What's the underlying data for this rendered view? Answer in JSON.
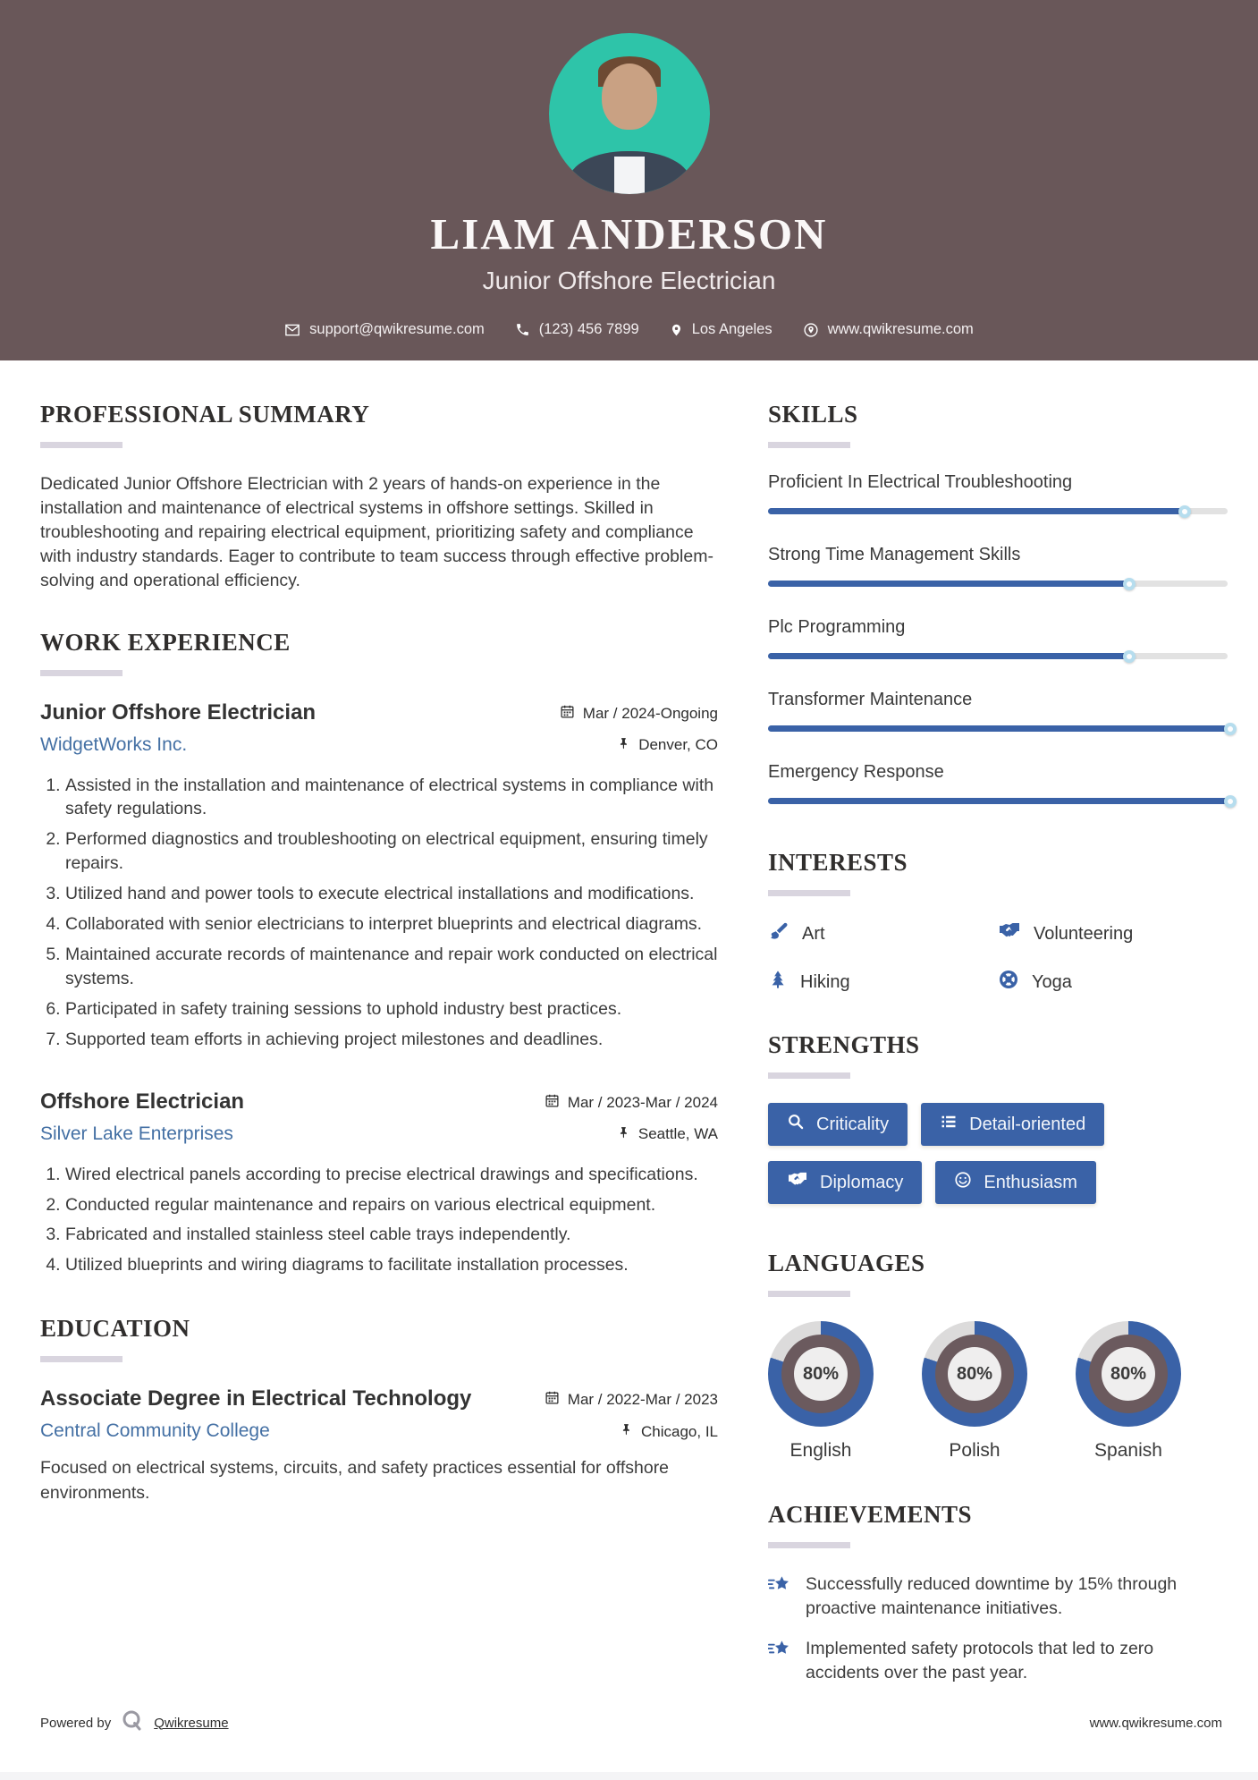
{
  "colors": {
    "accent": "#3A62A7",
    "header_bg": "#695759",
    "avatar_bg": "#2EC4A9",
    "link": "#4470A4",
    "donut_track": "#DCDBDB",
    "donut_mid": "#6B5A5E"
  },
  "header": {
    "name": "LIAM ANDERSON",
    "title": "Junior Offshore Electrician",
    "contact": {
      "email": "support@qwikresume.com",
      "phone": "(123) 456 7899",
      "location": "Los Angeles",
      "website": "www.qwikresume.com"
    }
  },
  "summary": {
    "heading": "PROFESSIONAL SUMMARY",
    "text": "Dedicated Junior Offshore Electrician with 2 years of hands-on experience in the installation and maintenance of electrical systems in offshore settings. Skilled in troubleshooting and repairing electrical equipment, prioritizing safety and compliance with industry standards. Eager to contribute to team success through effective problem-solving and operational efficiency."
  },
  "experience": {
    "heading": "WORK EXPERIENCE",
    "jobs": [
      {
        "title": "Junior Offshore Electrician",
        "company": "WidgetWorks Inc.",
        "dates": "Mar / 2024-Ongoing",
        "location": "Denver, CO",
        "bullets": [
          "Assisted in the installation and maintenance of electrical systems in compliance with safety regulations.",
          "Performed diagnostics and troubleshooting on electrical equipment, ensuring timely repairs.",
          "Utilized hand and power tools to execute electrical installations and modifications.",
          "Collaborated with senior electricians to interpret blueprints and electrical diagrams.",
          "Maintained accurate records of maintenance and repair work conducted on electrical systems.",
          "Participated in safety training sessions to uphold industry best practices.",
          "Supported team efforts in achieving project milestones and deadlines."
        ]
      },
      {
        "title": "Offshore Electrician",
        "company": "Silver Lake Enterprises",
        "dates": "Mar / 2023-Mar / 2024",
        "location": "Seattle, WA",
        "bullets": [
          "Wired electrical panels according to precise electrical drawings and specifications.",
          "Conducted regular maintenance and repairs on various electrical equipment.",
          "Fabricated and installed stainless steel cable trays independently.",
          "Utilized blueprints and wiring diagrams to facilitate installation processes."
        ]
      }
    ]
  },
  "education": {
    "heading": "EDUCATION",
    "degree": "Associate Degree in Electrical Technology",
    "school": "Central Community College",
    "dates": "Mar / 2022-Mar / 2023",
    "location": "Chicago, IL",
    "description": "Focused on electrical systems, circuits, and safety practices essential for offshore environments."
  },
  "skills": {
    "heading": "SKILLS",
    "items": [
      {
        "label": "Proficient In Electrical Troubleshooting",
        "percent": 90
      },
      {
        "label": "Strong Time Management Skills",
        "percent": 78
      },
      {
        "label": "Plc Programming",
        "percent": 78
      },
      {
        "label": "Transformer Maintenance",
        "percent": 100
      },
      {
        "label": "Emergency Response",
        "percent": 100
      }
    ]
  },
  "interests": {
    "heading": "INTERESTS",
    "items": [
      {
        "label": "Art",
        "icon": "paintbrush-icon"
      },
      {
        "label": "Volunteering",
        "icon": "handshake-icon"
      },
      {
        "label": "Hiking",
        "icon": "tree-icon"
      },
      {
        "label": "Yoga",
        "icon": "life-ring-icon"
      }
    ]
  },
  "strengths": {
    "heading": "STRENGTHS",
    "items": [
      {
        "label": "Criticality",
        "icon": "search-icon"
      },
      {
        "label": "Detail-oriented",
        "icon": "list-icon"
      },
      {
        "label": "Diplomacy",
        "icon": "handshake-icon"
      },
      {
        "label": "Enthusiasm",
        "icon": "smiley-icon"
      }
    ]
  },
  "languages": {
    "heading": "LANGUAGES",
    "items": [
      {
        "label": "English",
        "percent": 80,
        "percent_label": "80%"
      },
      {
        "label": "Polish",
        "percent": 80,
        "percent_label": "80%"
      },
      {
        "label": "Spanish",
        "percent": 80,
        "percent_label": "80%"
      }
    ]
  },
  "achievements": {
    "heading": "ACHIEVEMENTS",
    "items": [
      "Successfully reduced downtime by 15% through proactive maintenance initiatives.",
      "Implemented safety protocols that led to zero accidents over the past year."
    ]
  },
  "footer": {
    "powered_by": "Powered by",
    "brand": "Qwikresume",
    "website": "www.qwikresume.com"
  }
}
